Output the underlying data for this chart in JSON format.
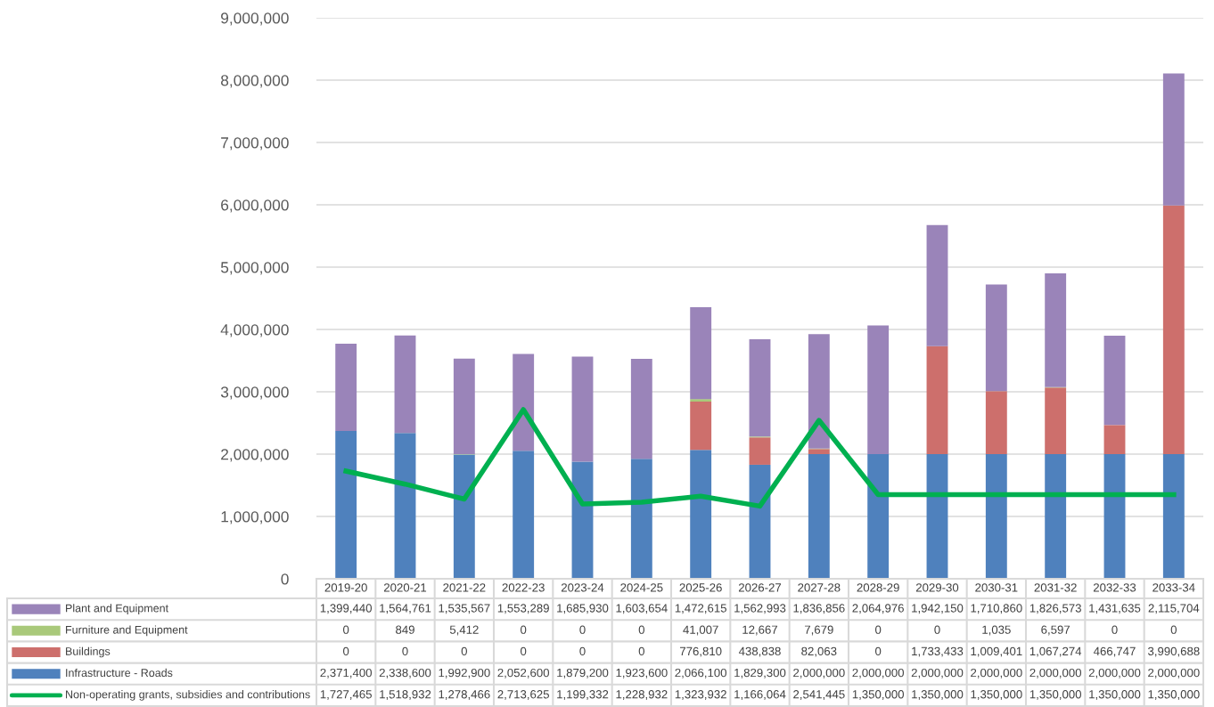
{
  "chart_data": {
    "type": "bar",
    "stacked": true,
    "grid": "y",
    "legend": "bottom",
    "categories": [
      "2019-20",
      "2020-21",
      "2021-22",
      "2022-23",
      "2023-24",
      "2024-25",
      "2025-26",
      "2026-27",
      "2027-28",
      "2028-29",
      "2029-30",
      "2030-31",
      "2031-32",
      "2032-33",
      "2033-34"
    ],
    "ylim": [
      0,
      9000000
    ],
    "yticks": [
      {
        "value": 0,
        "label": "0"
      },
      {
        "value": 1000000,
        "label": "1,000,000"
      },
      {
        "value": 2000000,
        "label": "2,000,000"
      },
      {
        "value": 3000000,
        "label": "3,000,000"
      },
      {
        "value": 4000000,
        "label": "4,000,000"
      },
      {
        "value": 5000000,
        "label": "5,000,000"
      },
      {
        "value": 6000000,
        "label": "6,000,000"
      },
      {
        "value": 7000000,
        "label": "7,000,000"
      },
      {
        "value": 8000000,
        "label": "8,000,000"
      },
      {
        "value": 9000000,
        "label": "9,000,000"
      }
    ],
    "series": [
      {
        "name": "Infrastructure - Roads",
        "color": "#4f81bd",
        "values": [
          2371400,
          2338600,
          1992900,
          2052600,
          1879200,
          1923600,
          2066100,
          1829300,
          2000000,
          2000000,
          2000000,
          2000000,
          2000000,
          2000000,
          2000000
        ],
        "value_labels": [
          "2,371,400",
          "2,338,600",
          "1,992,900",
          "2,052,600",
          "1,879,200",
          "1,923,600",
          "2,066,100",
          "1,829,300",
          "2,000,000",
          "2,000,000",
          "2,000,000",
          "2,000,000",
          "2,000,000",
          "2,000,000",
          "2,000,000"
        ]
      },
      {
        "name": "Buildings",
        "color": "#cd6f6c",
        "values": [
          0,
          0,
          0,
          0,
          0,
          0,
          776810,
          438838,
          82063,
          0,
          1733433,
          1009401,
          1067274,
          466747,
          3990688
        ],
        "value_labels": [
          "0",
          "0",
          "0",
          "0",
          "0",
          "0",
          "776,810",
          "438,838",
          "82,063",
          "0",
          "1,733,433",
          "1,009,401",
          "1,067,274",
          "466,747",
          "3,990,688"
        ]
      },
      {
        "name": "Furniture and Equipment",
        "color": "#a9c97a",
        "values": [
          0,
          849,
          5412,
          0,
          0,
          0,
          41007,
          12667,
          7679,
          0,
          0,
          1035,
          6597,
          0,
          0
        ],
        "value_labels": [
          "0",
          "849",
          "5,412",
          "0",
          "0",
          "0",
          "41,007",
          "12,667",
          "7,679",
          "0",
          "0",
          "1,035",
          "6,597",
          "0",
          "0"
        ]
      },
      {
        "name": "Plant and Equipment",
        "color": "#9a84b9",
        "values": [
          1399440,
          1564761,
          1535567,
          1553289,
          1685930,
          1603654,
          1472615,
          1562993,
          1836856,
          2064976,
          1942150,
          1710860,
          1826573,
          1431635,
          2115704
        ],
        "value_labels": [
          "1,399,440",
          "1,564,761",
          "1,535,567",
          "1,553,289",
          "1,685,930",
          "1,603,654",
          "1,472,615",
          "1,562,993",
          "1,836,856",
          "2,064,976",
          "1,942,150",
          "1,710,860",
          "1,826,573",
          "1,431,635",
          "2,115,704"
        ]
      },
      {
        "name": "Non-operating grants, subsidies and contributions",
        "type": "line",
        "color": "#00b050",
        "values": [
          1727465,
          1518932,
          1278466,
          2713625,
          1199332,
          1228932,
          1323932,
          1166064,
          2541445,
          1350000,
          1350000,
          1350000,
          1350000,
          1350000,
          1350000
        ],
        "value_labels": [
          "1,727,465",
          "1,518,932",
          "1,278,466",
          "2,713,625",
          "1,199,332",
          "1,228,932",
          "1,323,932",
          "1,166,064",
          "2,541,445",
          "1,350,000",
          "1,350,000",
          "1,350,000",
          "1,350,000",
          "1,350,000",
          "1,350,000"
        ]
      }
    ]
  }
}
